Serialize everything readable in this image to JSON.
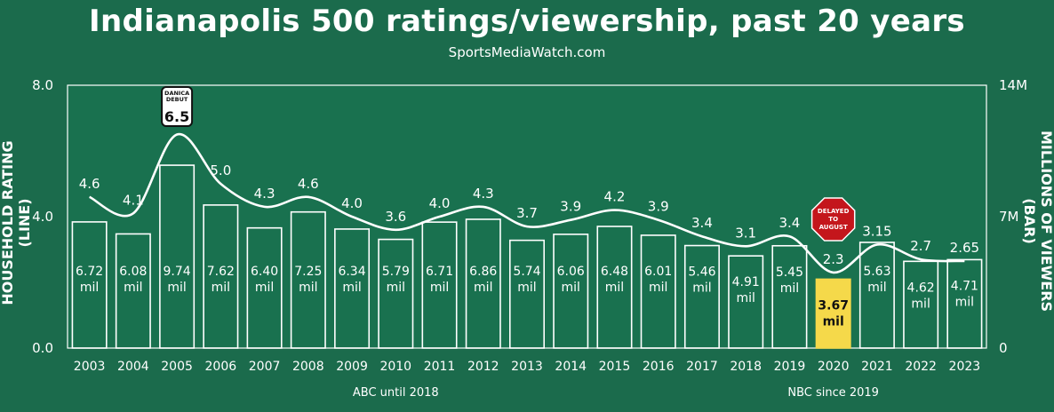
{
  "chart_data": {
    "type": "bar",
    "title": "Indianapolis 500 ratings/viewership, past 20 years",
    "subtitle": "SportsMediaWatch.com",
    "ylabel_left": "HOUSEHOLD RATING (LINE)",
    "ylabel_right": "MILLIONS OF VIEWERS (BAR)",
    "ylim_left": [
      0,
      8
    ],
    "ylim_right": [
      0,
      14
    ],
    "left_ticks": [
      "0.0",
      "4.0",
      "8.0"
    ],
    "right_ticks": [
      "0",
      "7M",
      "14M"
    ],
    "categories": [
      "2003",
      "2004",
      "2005",
      "2006",
      "2007",
      "2008",
      "2009",
      "2010",
      "2011",
      "2012",
      "2013",
      "2014",
      "2015",
      "2016",
      "2017",
      "2018",
      "2019",
      "2020",
      "2021",
      "2022",
      "2023"
    ],
    "series": [
      {
        "name": "Viewers (millions)",
        "type": "bar",
        "values": [
          6.72,
          6.08,
          9.74,
          7.62,
          6.4,
          7.25,
          6.34,
          5.79,
          6.71,
          6.86,
          5.74,
          6.06,
          6.48,
          6.01,
          5.46,
          4.91,
          5.45,
          3.67,
          5.63,
          4.62,
          4.71
        ],
        "labels": [
          "6.72",
          "6.08",
          "9.74",
          "7.62",
          "6.40",
          "7.25",
          "6.34",
          "5.79",
          "6.71",
          "6.86",
          "5.74",
          "6.06",
          "6.48",
          "6.01",
          "5.46",
          "4.91",
          "5.45",
          "3.67",
          "5.63",
          "4.62",
          "4.71"
        ],
        "unit": "mil"
      },
      {
        "name": "Household rating",
        "type": "line",
        "values": [
          4.6,
          4.1,
          6.5,
          5.0,
          4.3,
          4.6,
          4.0,
          3.6,
          4.0,
          4.3,
          3.7,
          3.9,
          4.2,
          3.9,
          3.4,
          3.1,
          3.4,
          2.3,
          3.15,
          2.7,
          2.65
        ],
        "labels": [
          "4.6",
          "4.1",
          "6.5",
          "5.0",
          "4.3",
          "4.6",
          "4.0",
          "3.6",
          "4.0",
          "4.3",
          "3.7",
          "3.9",
          "4.2",
          "3.9",
          "3.4",
          "3.1",
          "3.4",
          "2.3",
          "3.15",
          "2.7",
          "2.65"
        ]
      }
    ],
    "network_labels": [
      {
        "text": "ABC until 2018",
        "year": "2010"
      },
      {
        "text": "NBC since 2019",
        "year": "2020"
      }
    ],
    "annotations": [
      {
        "year": "2005",
        "lines": [
          "DANICA",
          "DEBUT"
        ],
        "value_label": "6.5",
        "style": "badge"
      },
      {
        "year": "2020",
        "lines": [
          "DELAYED",
          "TO",
          "AUGUST"
        ],
        "style": "stop-sign"
      }
    ],
    "highlight": {
      "year": "2020",
      "color": "#f5d94a"
    },
    "colors": {
      "background": "#1b6b4c",
      "plot": "#19714f",
      "line": "#ffffff",
      "bar_outline": "#ffffff",
      "stop_sign": "#c4161c"
    }
  }
}
